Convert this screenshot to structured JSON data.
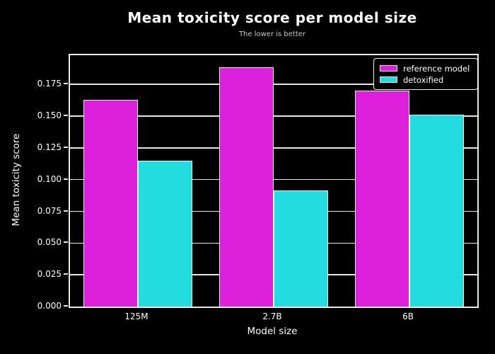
{
  "chart_data": {
    "type": "bar",
    "title": "Mean toxicity score per model size",
    "subtitle": "The lower is better",
    "xlabel": "Model size",
    "ylabel": "Mean toxicity score",
    "categories": [
      "125M",
      "2.7B",
      "6B"
    ],
    "series": [
      {
        "name": "reference model",
        "color": "#DC20DC",
        "values": [
          0.1627,
          0.1884,
          0.1699
        ]
      },
      {
        "name": "detoxified",
        "color": "#23DCE0",
        "values": [
          0.1148,
          0.0916,
          0.151
        ]
      }
    ],
    "ylim": [
      0,
      0.198
    ],
    "yticks": [
      {
        "value": 0.0,
        "label": "0.000"
      },
      {
        "value": 0.025,
        "label": "0.025"
      },
      {
        "value": 0.05,
        "label": "0.050"
      },
      {
        "value": 0.075,
        "label": "0.075"
      },
      {
        "value": 0.1,
        "label": "0.100"
      },
      {
        "value": 0.125,
        "label": "0.125"
      },
      {
        "value": 0.15,
        "label": "0.150"
      },
      {
        "value": 0.175,
        "label": "0.175"
      }
    ],
    "grid": true,
    "legend_position": "upper right",
    "background_color": "#000000",
    "text_color": "#ffffff",
    "subtitle_color": "#c9c9c9",
    "axis_color": "#e8e8e8"
  }
}
